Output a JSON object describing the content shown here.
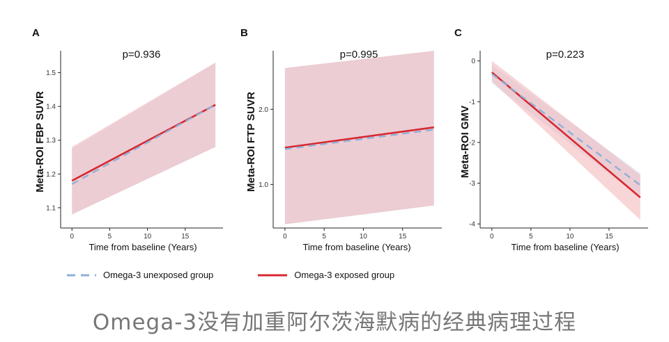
{
  "caption": "Omega-3没有加重阿尔茨海默病的经典病理过程",
  "colors": {
    "unexposed": "#8fb0d8",
    "exposed": "#d7282f",
    "unexposed_band": "#cfe0f2",
    "exposed_band": "#f3b3b6"
  },
  "legend": {
    "unexposed": "Omega-3 unexposed group",
    "exposed": "Omega-3 exposed group"
  },
  "chart_data": [
    {
      "panel": "A",
      "type": "line",
      "title": "p=0.936",
      "xlabel": "Time from baseline (Years)",
      "ylabel": "Meta-ROI FBP SUVR",
      "xlim": [
        -1.5,
        20
      ],
      "ylim": [
        1.04,
        1.565
      ],
      "xticks": [
        0,
        5,
        10,
        15
      ],
      "yticks": [
        1.1,
        1.2,
        1.3,
        1.4,
        1.5
      ],
      "ytick_labels": [
        "1.1",
        "1.2",
        "1.3",
        "1.4",
        "1.5"
      ],
      "grid": false,
      "series": [
        {
          "name": "Omega-3 unexposed group",
          "style": "dashed",
          "x": [
            0,
            19
          ],
          "y": [
            1.17,
            1.405
          ],
          "ci_low": [
            1.08,
            1.28
          ],
          "ci_high": [
            1.275,
            1.53
          ]
        },
        {
          "name": "Omega-3 exposed group",
          "style": "solid",
          "x": [
            0,
            19
          ],
          "y": [
            1.18,
            1.405
          ],
          "ci_low": [
            1.08,
            1.28
          ],
          "ci_high": [
            1.28,
            1.53
          ]
        }
      ]
    },
    {
      "panel": "B",
      "type": "line",
      "title": "p=0.995",
      "xlabel": "Time from baseline (Years)",
      "ylabel": "Meta-ROI FTP SUVR",
      "xlim": [
        -1.5,
        20
      ],
      "ylim": [
        0.42,
        2.78
      ],
      "xticks": [
        0,
        5,
        10,
        15
      ],
      "yticks": [
        1.0,
        2.0
      ],
      "ytick_labels": [
        "1.0",
        "2.0"
      ],
      "grid": false,
      "series": [
        {
          "name": "Omega-3 unexposed group",
          "style": "dashed",
          "x": [
            0,
            19
          ],
          "y": [
            1.47,
            1.73
          ],
          "ci_low": [
            0.47,
            0.72
          ],
          "ci_high": [
            2.55,
            2.78
          ]
        },
        {
          "name": "Omega-3 exposed group",
          "style": "solid",
          "x": [
            0,
            19
          ],
          "y": [
            1.49,
            1.76
          ],
          "ci_low": [
            0.47,
            0.72
          ],
          "ci_high": [
            2.55,
            2.78
          ]
        }
      ]
    },
    {
      "panel": "C",
      "type": "line",
      "title": "p=0.223",
      "xlabel": "Time from baseline (Years)",
      "ylabel": "Meta-ROI GMV",
      "xlim": [
        -1.5,
        20
      ],
      "ylim": [
        -4.1,
        0.25
      ],
      "xticks": [
        0,
        5,
        10,
        15
      ],
      "yticks": [
        0,
        -1,
        -2,
        -3,
        -4
      ],
      "ytick_labels": [
        "0",
        "-1",
        "-2",
        "-3",
        "-4"
      ],
      "grid": false,
      "series": [
        {
          "name": "Omega-3 unexposed group",
          "style": "dashed",
          "x": [
            0,
            19
          ],
          "y": [
            -0.32,
            -3.05
          ],
          "ci_low": [
            -0.55,
            -3.35
          ],
          "ci_high": [
            -0.1,
            -2.75
          ]
        },
        {
          "name": "Omega-3 exposed group",
          "style": "solid",
          "x": [
            0,
            19
          ],
          "y": [
            -0.28,
            -3.35
          ],
          "ci_low": [
            -0.5,
            -3.9
          ],
          "ci_high": [
            0.0,
            -2.8
          ]
        }
      ]
    }
  ]
}
